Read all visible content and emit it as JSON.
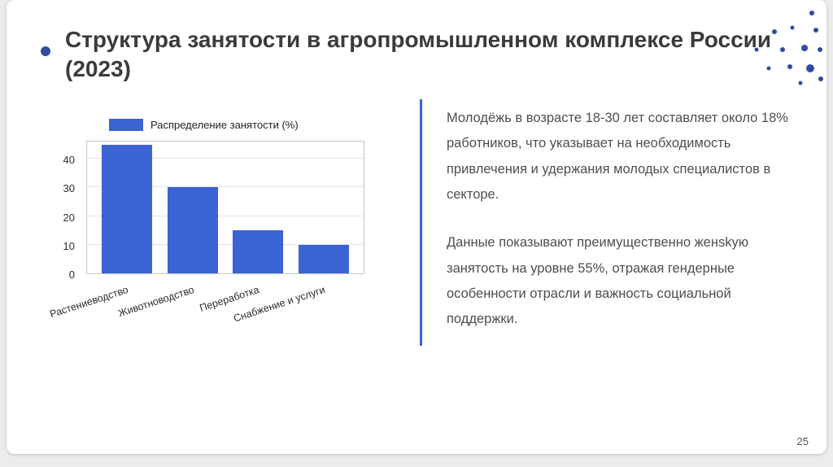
{
  "slide": {
    "title": "Структура занятости в агропромышленном комплексе России (2023)",
    "page_number": "25"
  },
  "chart_data": {
    "type": "bar",
    "title": "",
    "legend": "Распределение занятости (%)",
    "categories": [
      "Растениеводство",
      "Животноводство",
      "Переработка",
      "Снабжение и услуги"
    ],
    "values": [
      45,
      30,
      15,
      10
    ],
    "xlabel": "",
    "ylabel": "",
    "yticks": [
      0,
      10,
      20,
      30,
      40
    ],
    "ylim": [
      0,
      46
    ],
    "grid": true,
    "legend_position": "top-left",
    "bar_color": "#3b63d3"
  },
  "text_panel": {
    "accent_color": "#3b63d3",
    "paragraphs": [
      "Молодёжь в возрасте 18-30 лет составляет около 18% работников, что указывает на необходимость привлечения и удержания молодых специалистов в секторе.",
      "Данные показывают преимущественно женskую занятость на уровне 55%, отражая гендерные особенности отрасли и важность социальной поддержки."
    ]
  },
  "decor": {
    "dot_color": "#2e4ca0"
  }
}
